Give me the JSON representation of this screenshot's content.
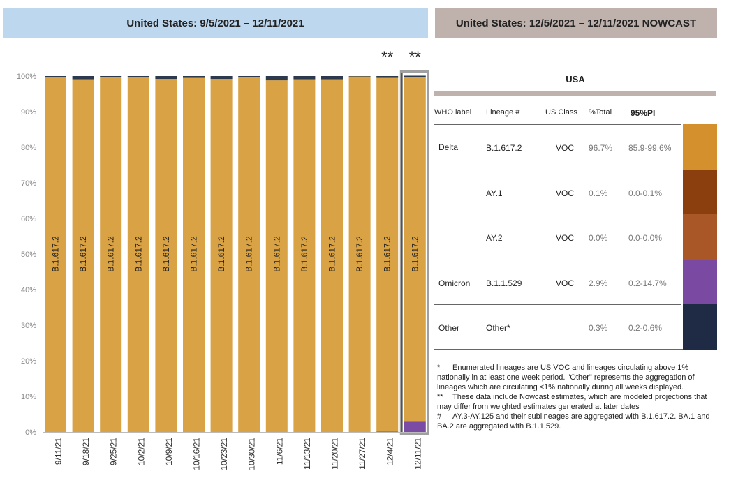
{
  "headers": {
    "left": "United States: 9/5/2021 – 12/11/2021",
    "right": "United States: 12/5/2021 – 12/11/2021 NOWCAST"
  },
  "colors": {
    "header_left": "#bdd7ee",
    "header_right": "#bfb2ad",
    "delta": "#d9a244",
    "other": "#2d3a4d",
    "omicron": "#7b4ca3",
    "nowcast_frame": "#a0a0a0",
    "table_rule": "#bfb2ad",
    "swatch_delta": "#d4902c",
    "swatch_ay1": "#8b3f0f",
    "swatch_ay2": "#a95727",
    "swatch_omicron": "#7a4aa3",
    "swatch_other": "#1f2b45"
  },
  "chart_data": {
    "type": "bar",
    "stacked": true,
    "categories": [
      "9/11/21",
      "9/18/21",
      "9/25/21",
      "10/2/21",
      "10/9/21",
      "10/16/21",
      "10/23/21",
      "10/30/21",
      "11/6/21",
      "11/13/21",
      "11/20/21",
      "11/27/21",
      "12/4/21",
      "12/11/21"
    ],
    "series": [
      {
        "name": "Omicron",
        "color_key": "omicron",
        "values": [
          0,
          0,
          0,
          0,
          0,
          0,
          0,
          0,
          0,
          0,
          0,
          0,
          0.1,
          2.9
        ]
      },
      {
        "name": "Delta",
        "color_key": "delta",
        "values": [
          99.6,
          99.1,
          99.7,
          99.6,
          99.2,
          99.5,
          99.2,
          99.7,
          98.8,
          99.1,
          99.1,
          99.9,
          99.4,
          96.9
        ]
      },
      {
        "name": "Other",
        "color_key": "other",
        "values": [
          0.4,
          0.9,
          0.3,
          0.4,
          0.8,
          0.5,
          0.8,
          0.3,
          1.2,
          0.9,
          0.9,
          0.1,
          0.5,
          0.3
        ]
      }
    ],
    "bar_label": "B.1.617.2",
    "asterisk_label": "**",
    "asterisk_categories": [
      "12/4/21",
      "12/11/21"
    ],
    "nowcast_category": "12/11/21",
    "y_ticks": [
      "0%",
      "10%",
      "20%",
      "30%",
      "40%",
      "50%",
      "60%",
      "70%",
      "80%",
      "90%",
      "100%"
    ],
    "ylim": [
      0,
      100
    ],
    "title": "",
    "xlabel": "",
    "ylabel": "",
    "grid": false
  },
  "table": {
    "title": "USA",
    "columns": {
      "who": "WHO label",
      "lineage": "Lineage #",
      "class": "US Class",
      "total": "%Total",
      "pi": "95%PI"
    },
    "rows": [
      {
        "who": "Delta",
        "lineage": "B.1.617.2",
        "class": "VOC",
        "total": "96.7%",
        "pi": "85.9-99.6%"
      },
      {
        "who": "",
        "lineage": "AY.1",
        "class": "VOC",
        "total": "0.1%",
        "pi": "0.0-0.1%"
      },
      {
        "who": "",
        "lineage": "AY.2",
        "class": "VOC",
        "total": "0.0%",
        "pi": "0.0-0.0%"
      },
      {
        "who": "Omicron",
        "lineage": "B.1.1.529",
        "class": "VOC",
        "total": "2.9%",
        "pi": "0.2-14.7%"
      },
      {
        "who": "Other",
        "lineage": "Other*",
        "class": "",
        "total": "0.3%",
        "pi": "0.2-0.6%"
      }
    ]
  },
  "notes": [
    {
      "mark": "*",
      "text": "Enumerated lineages are US VOC and lineages circulating above 1% nationally in at least one week period. \"Other\" represents the aggregation of lineages which are circulating <1% nationally during all weeks displayed."
    },
    {
      "mark": "**",
      "text": "These data include Nowcast estimates, which are modeled projections that may differ from weighted estimates generated at later dates"
    },
    {
      "mark": "#",
      "text": "AY.3-AY.125 and their sublineages are aggregated with B.1.617.2. BA.1 and BA.2 are aggregated with B.1.1.529."
    }
  ]
}
